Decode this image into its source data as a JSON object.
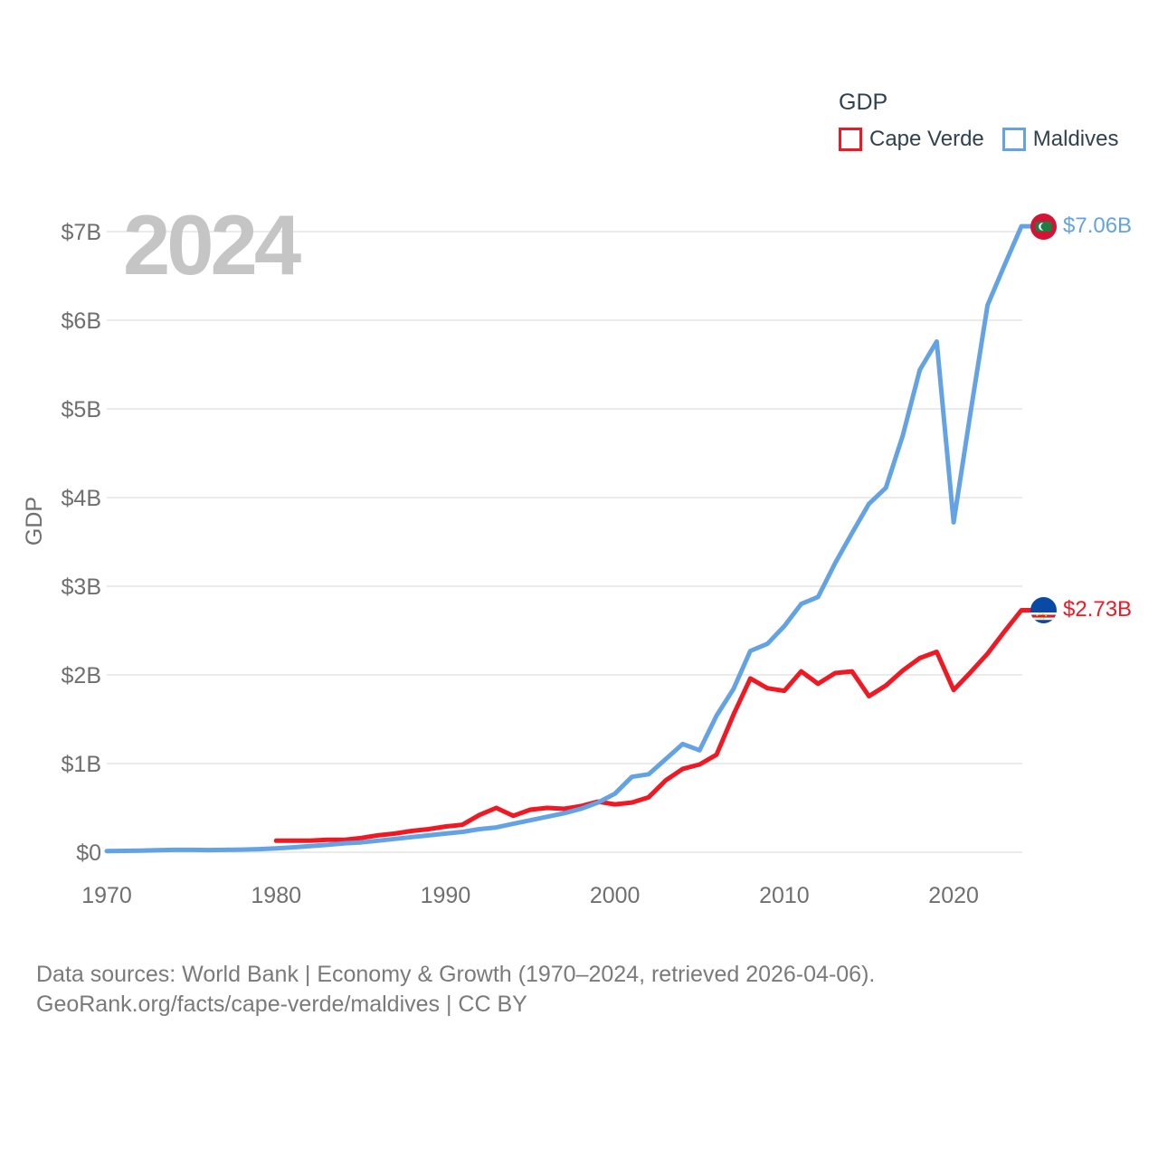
{
  "watermark": "2024",
  "legend": {
    "title": "GDP",
    "items": [
      {
        "label": "Cape Verde",
        "color": "#f01823"
      },
      {
        "label": "Maldives",
        "color": "#63a3e3"
      }
    ]
  },
  "footer": {
    "line1": "Data sources: World Bank | Economy & Growth (1970–2024, retrieved 2026-04-06).",
    "line2": "GeoRank.org/facts/cape-verde/maldives | CC BY"
  },
  "colors": {
    "cape_verde": "#f01823",
    "maldives": "#63a3e3",
    "gridline": "#ebebeb",
    "tick_text": "#6f6f6f",
    "legend_text": "#30414f",
    "watermark": "#c5c5c5",
    "footer_text": "#7a7a7a"
  },
  "chart_data": {
    "type": "line",
    "title": "GDP",
    "xlabel": "",
    "ylabel": "GDP",
    "unit": "current US$ billions",
    "xlim": [
      1970,
      2024
    ],
    "ylim": [
      0,
      7.3
    ],
    "grid": "horizontal only",
    "legend_position": "top-right",
    "y_ticks": [
      {
        "v": 0,
        "label": "$0"
      },
      {
        "v": 1,
        "label": "$1B"
      },
      {
        "v": 2,
        "label": "$2B"
      },
      {
        "v": 3,
        "label": "$3B"
      },
      {
        "v": 4,
        "label": "$4B"
      },
      {
        "v": 5,
        "label": "$5B"
      },
      {
        "v": 6,
        "label": "$6B"
      },
      {
        "v": 7,
        "label": "$7B"
      }
    ],
    "x_ticks": [
      {
        "v": 1970,
        "label": "1970"
      },
      {
        "v": 1980,
        "label": "1980"
      },
      {
        "v": 1990,
        "label": "1990"
      },
      {
        "v": 2000,
        "label": "2000"
      },
      {
        "v": 2010,
        "label": "2010"
      },
      {
        "v": 2020,
        "label": "2020"
      }
    ],
    "series": [
      {
        "name": "Cape Verde",
        "color": "#f01823",
        "start_year": 1980,
        "end_year": 2024,
        "end_label": "$2.73B",
        "values": [
          0.13,
          0.13,
          0.13,
          0.14,
          0.14,
          0.16,
          0.19,
          0.21,
          0.24,
          0.26,
          0.29,
          0.31,
          0.42,
          0.5,
          0.41,
          0.48,
          0.5,
          0.49,
          0.52,
          0.57,
          0.54,
          0.56,
          0.62,
          0.81,
          0.94,
          0.99,
          1.1,
          1.55,
          1.96,
          1.85,
          1.82,
          2.04,
          1.9,
          2.02,
          2.04,
          1.76,
          1.88,
          2.05,
          2.19,
          2.26,
          1.83,
          2.03,
          2.24,
          2.49,
          2.73
        ]
      },
      {
        "name": "Maldives",
        "color": "#63a3e3",
        "start_year": 1970,
        "end_year": 2024,
        "end_label": "$7.06B",
        "values": [
          0.013,
          0.015,
          0.017,
          0.023,
          0.027,
          0.027,
          0.024,
          0.027,
          0.03,
          0.035,
          0.043,
          0.055,
          0.068,
          0.083,
          0.1,
          0.11,
          0.13,
          0.15,
          0.17,
          0.19,
          0.21,
          0.23,
          0.26,
          0.28,
          0.32,
          0.36,
          0.4,
          0.44,
          0.49,
          0.56,
          0.66,
          0.85,
          0.88,
          1.05,
          1.22,
          1.15,
          1.54,
          1.84,
          2.27,
          2.35,
          2.55,
          2.8,
          2.88,
          3.26,
          3.6,
          3.93,
          4.11,
          4.7,
          5.44,
          5.76,
          3.72,
          4.96,
          6.17,
          6.62,
          7.06
        ]
      }
    ]
  }
}
